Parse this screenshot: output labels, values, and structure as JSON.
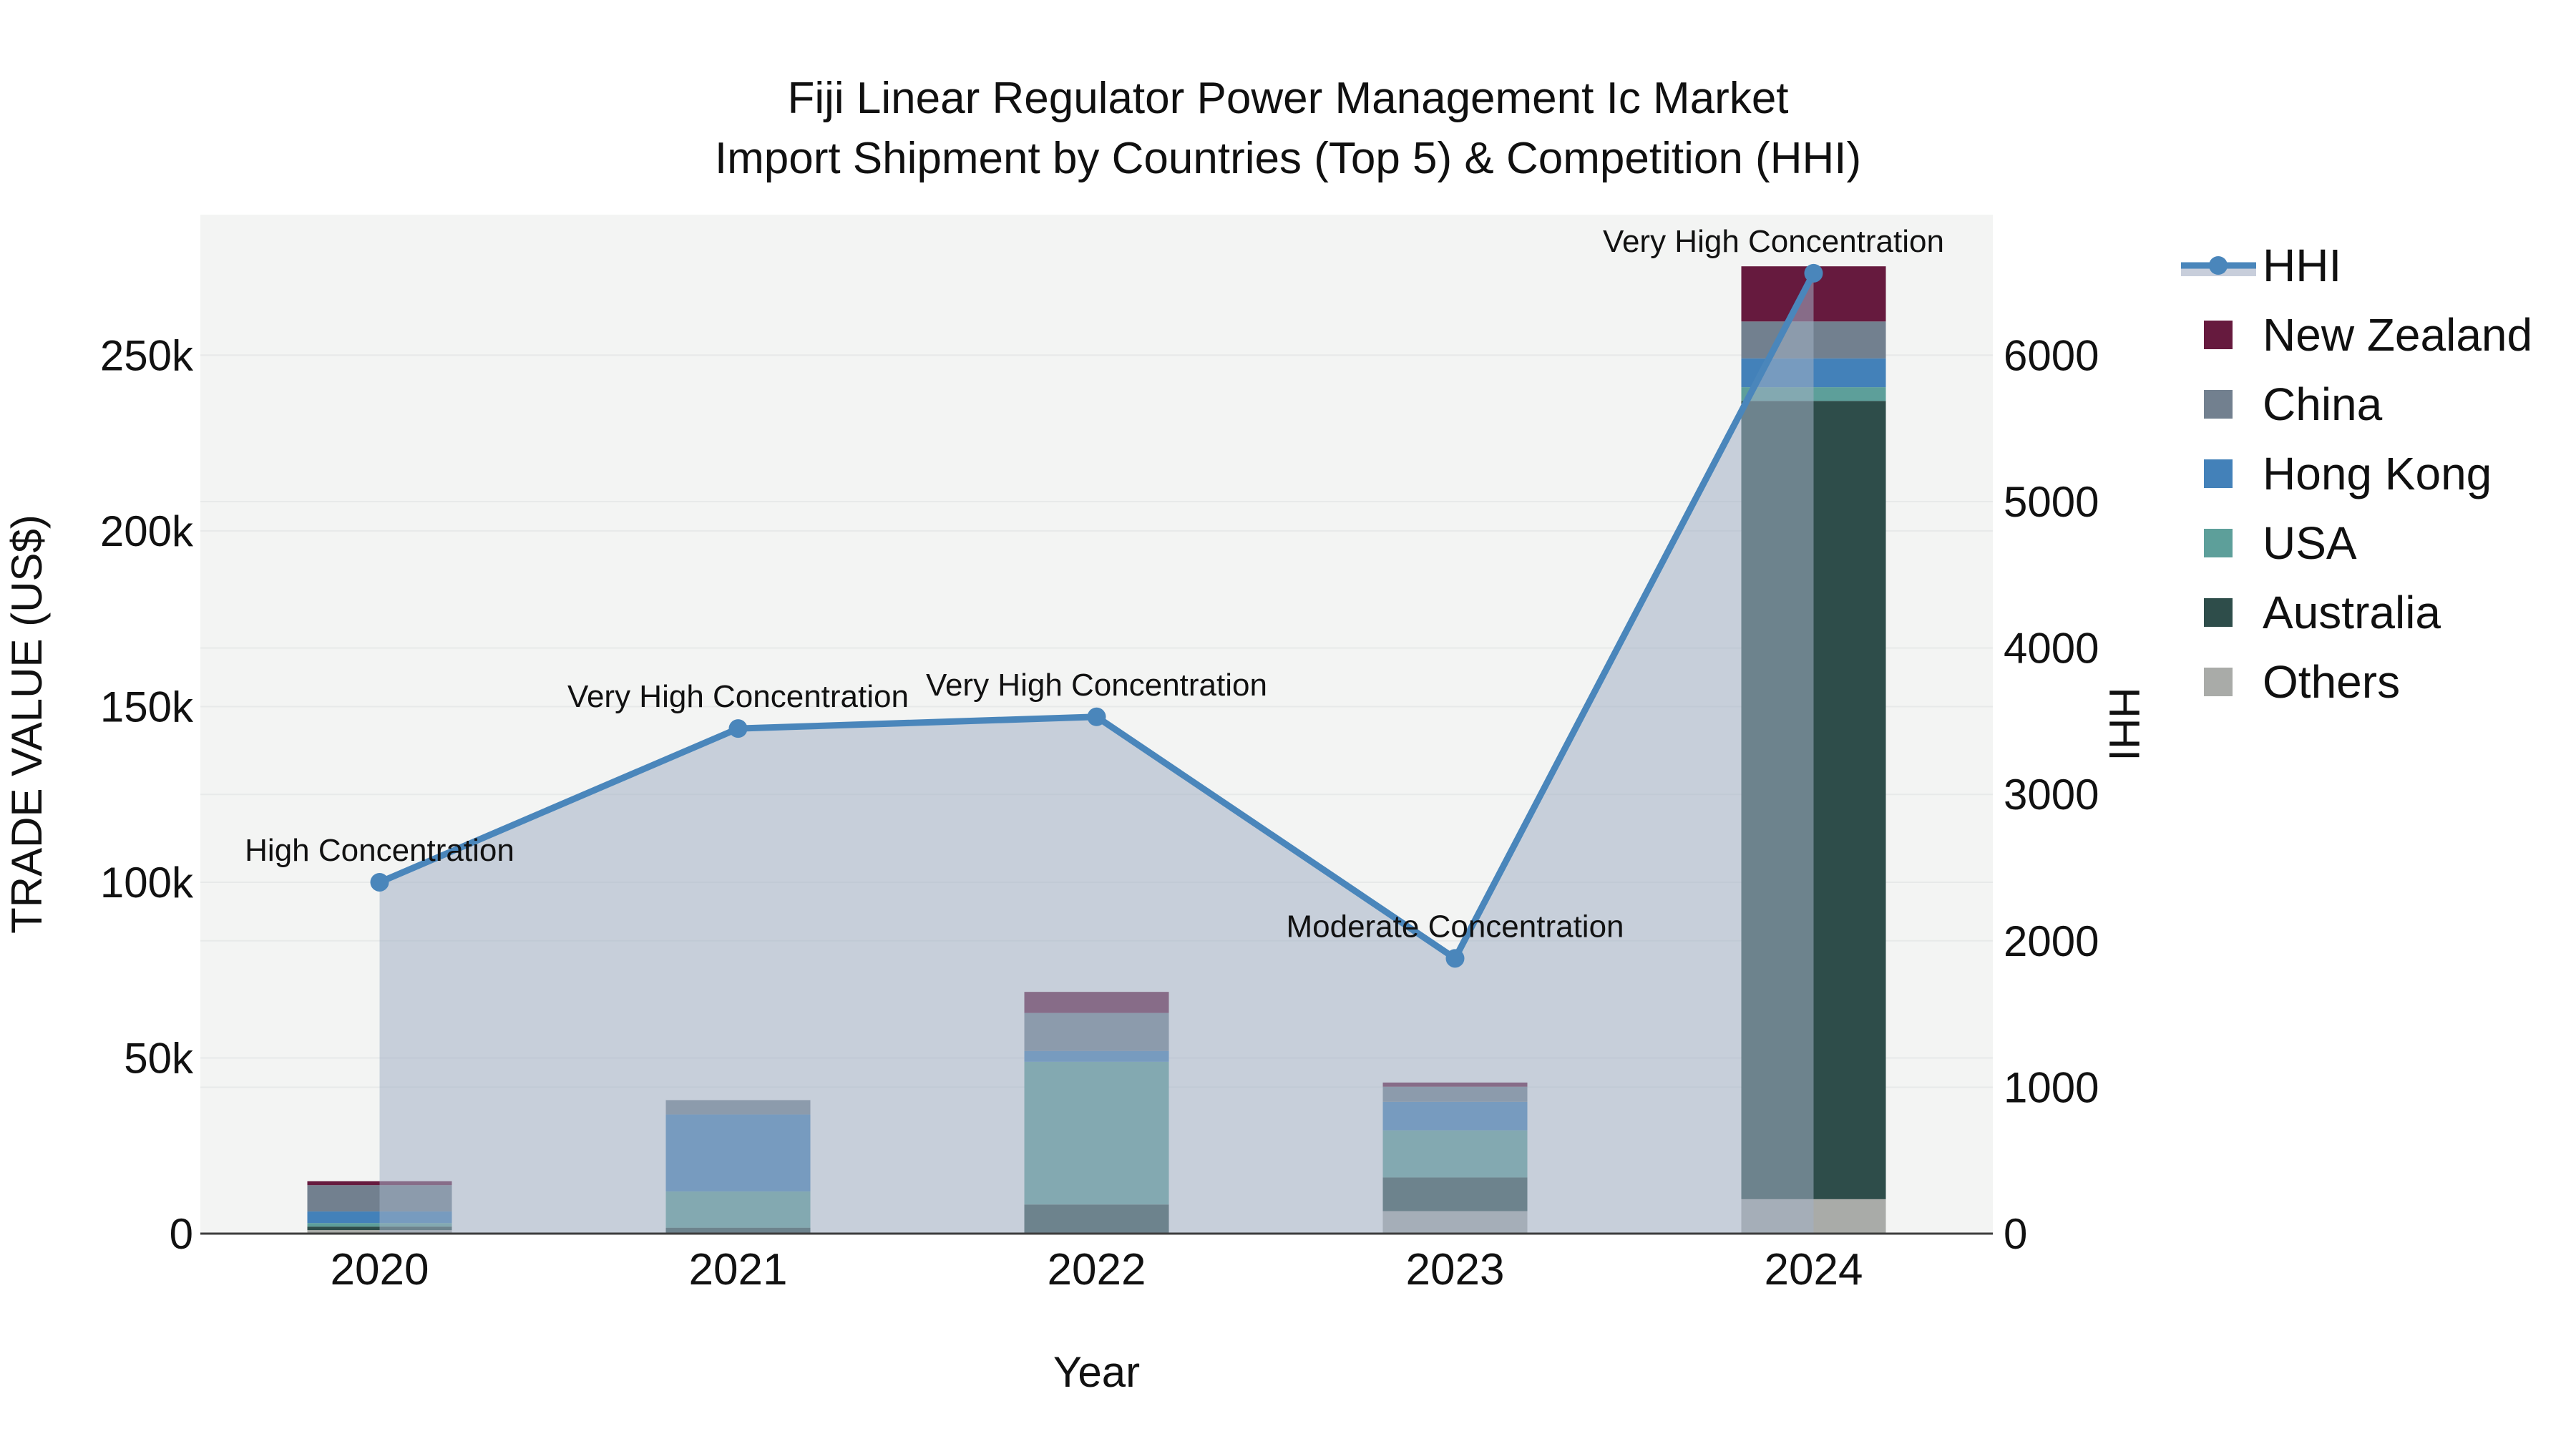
{
  "title": {
    "line1": "Fiji Linear Regulator Power Management Ic Market",
    "line2": "Import Shipment by Countries (Top 5) & Competition (HHI)"
  },
  "axes": {
    "x_title": "Year",
    "y_left_title": "TRADE VALUE (US$)",
    "y_right_title": "HHI"
  },
  "legend": {
    "items": [
      {
        "label": "HHI",
        "type": "line",
        "color": "#4a86bb"
      },
      {
        "label": "New Zealand",
        "type": "swatch",
        "color": "#661a3e"
      },
      {
        "label": "China",
        "type": "swatch",
        "color": "#72808f"
      },
      {
        "label": "Hong Kong",
        "type": "swatch",
        "color": "#4381b9"
      },
      {
        "label": "USA",
        "type": "swatch",
        "color": "#5d9f9a"
      },
      {
        "label": "Australia",
        "type": "swatch",
        "color": "#2e4d4a"
      },
      {
        "label": "Others",
        "type": "swatch",
        "color": "#a9aba8"
      }
    ]
  },
  "chart_data": {
    "type": "bar",
    "subtype": "stacked-bar-with-line-dual-axis",
    "title": "Fiji Linear Regulator Power Management Ic Market Import Shipment by Countries (Top 5) & Competition (HHI)",
    "xlabel": "Year",
    "ylabel_left": "TRADE VALUE (US$)",
    "ylabel_right": "HHI",
    "categories": [
      "2020",
      "2021",
      "2022",
      "2023",
      "2024"
    ],
    "stack_order_bottom_to_top": [
      "Others",
      "Australia",
      "USA",
      "Hong Kong",
      "China",
      "New Zealand"
    ],
    "series": [
      {
        "name": "Others",
        "color": "#a9aba8",
        "values": [
          1000,
          0,
          0,
          6400,
          9800
        ]
      },
      {
        "name": "Australia",
        "color": "#2e4d4a",
        "values": [
          1000,
          1700,
          8300,
          9600,
          227200
        ]
      },
      {
        "name": "USA",
        "color": "#5d9f9a",
        "values": [
          1000,
          10300,
          40600,
          13400,
          3900
        ]
      },
      {
        "name": "Hong Kong",
        "color": "#4381b9",
        "values": [
          3300,
          21900,
          3100,
          8100,
          8200
        ]
      },
      {
        "name": "China",
        "color": "#72808f",
        "values": [
          7500,
          4100,
          10800,
          4300,
          10500
        ]
      },
      {
        "name": "New Zealand",
        "color": "#661a3e",
        "values": [
          1100,
          0,
          6000,
          1200,
          15700
        ]
      }
    ],
    "bar_totals": [
      14900,
      38000,
      68800,
      43000,
      275300
    ],
    "hhi_line": {
      "name": "HHI",
      "values": [
        2400,
        3450,
        3530,
        1880,
        6560
      ],
      "color": "#4a86bb",
      "fill_color": "rgba(163,177,197,0.55)",
      "marker": "circle"
    },
    "annotations": [
      {
        "year": "2020",
        "text": "High Concentration"
      },
      {
        "year": "2021",
        "text": "Very High Concentration"
      },
      {
        "year": "2022",
        "text": "Very High Concentration"
      },
      {
        "year": "2023",
        "text": "Moderate Concentration"
      },
      {
        "year": "2024",
        "text": "Very High Concentration"
      }
    ],
    "y_left_ticks": [
      0,
      50000,
      100000,
      150000,
      200000,
      250000
    ],
    "y_left_tick_labels": [
      "0",
      "50k",
      "100k",
      "150k",
      "200k",
      "250k"
    ],
    "y_right_ticks": [
      0,
      1000,
      2000,
      3000,
      4000,
      5000,
      6000
    ],
    "y_right_tick_labels": [
      "0",
      "1000",
      "2000",
      "3000",
      "4000",
      "5000",
      "6000"
    ],
    "ylim_left": [
      0,
      290000
    ],
    "ylim_right": [
      0,
      6960
    ],
    "grid": true,
    "legend_position": "right",
    "colors": {
      "plot_background": "#f3f4f3",
      "gridline": "#e7e9e9",
      "zero_line": "#3d3d3d",
      "text": "#111111"
    }
  }
}
